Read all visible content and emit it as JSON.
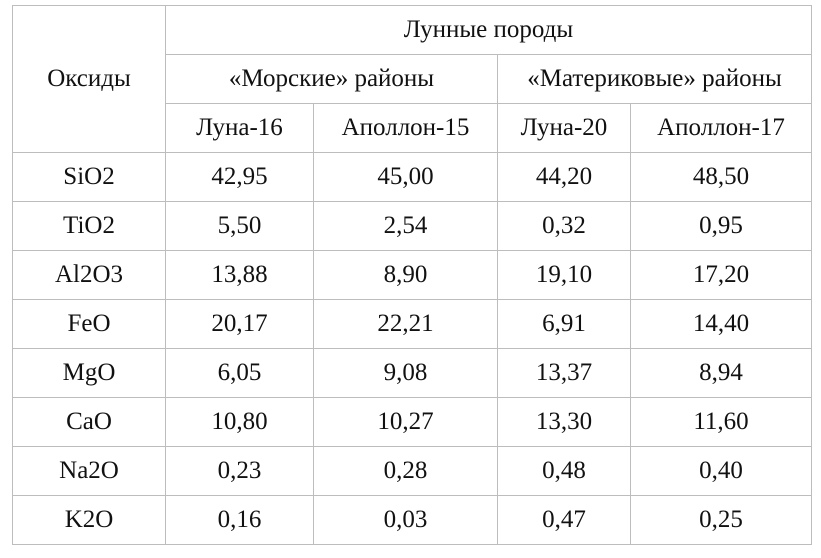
{
  "header": {
    "oxides": "Оксиды",
    "group": "Лунные породы",
    "sea": "«Морские» районы",
    "continent": "«Материковые» районы",
    "columns": [
      "Луна-16",
      "Аполлон-15",
      "Луна-20",
      "Аполлон-17"
    ]
  },
  "table": {
    "rows": [
      [
        "SiO2",
        "42,95",
        "45,00",
        "44,20",
        "48,50"
      ],
      [
        "TiO2",
        "5,50",
        "2,54",
        "0,32",
        "0,95"
      ],
      [
        "Al2O3",
        "13,88",
        "8,90",
        "19,10",
        "17,20"
      ],
      [
        "FeO",
        "20,17",
        "22,21",
        "6,91",
        "14,40"
      ],
      [
        "MgO",
        "6,05",
        "9,08",
        "13,37",
        "8,94"
      ],
      [
        "CaO",
        "10,80",
        "10,27",
        "13,30",
        "11,60"
      ],
      [
        "Na2O",
        "0,23",
        "0,28",
        "0,48",
        "0,40"
      ],
      [
        "K2O",
        "0,16",
        "0,03",
        "0,47",
        "0,25"
      ]
    ]
  }
}
